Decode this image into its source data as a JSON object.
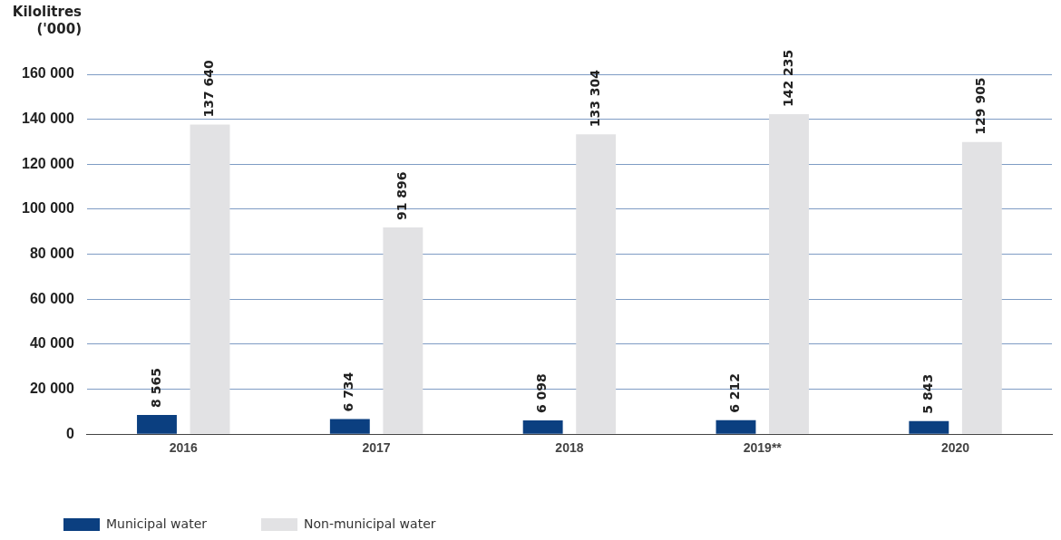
{
  "chart_data": {
    "type": "bar",
    "ylabel": "Kilolitres ('000)",
    "categories": [
      "2016",
      "2017",
      "2018",
      "2019**",
      "2020"
    ],
    "series": [
      {
        "name": "Municipal water",
        "color": "#0b3f80",
        "values": [
          8565,
          6734,
          6098,
          6212,
          5843
        ],
        "value_labels": [
          "8 565",
          "6 734",
          "6 098",
          "6 212",
          "5 843"
        ]
      },
      {
        "name": "Non-municipal water",
        "color": "#e2e2e4",
        "values": [
          137640,
          91896,
          133304,
          142235,
          129905
        ],
        "value_labels": [
          "137 640",
          "91 896",
          "133 304",
          "142 235",
          "129 905"
        ]
      }
    ],
    "ylim": [
      0,
      160000
    ],
    "yticks": [
      {
        "value": 0,
        "label": "0"
      },
      {
        "value": 20000,
        "label": "20 000"
      },
      {
        "value": 40000,
        "label": "40 000"
      },
      {
        "value": 60000,
        "label": "60 000"
      },
      {
        "value": 80000,
        "label": "80 000"
      },
      {
        "value": 100000,
        "label": "100 000"
      },
      {
        "value": 120000,
        "label": "120 000"
      },
      {
        "value": 140000,
        "label": "140 000"
      },
      {
        "value": 160000,
        "label": "160 000"
      }
    ],
    "grid": "y",
    "legend": "bottom left"
  }
}
